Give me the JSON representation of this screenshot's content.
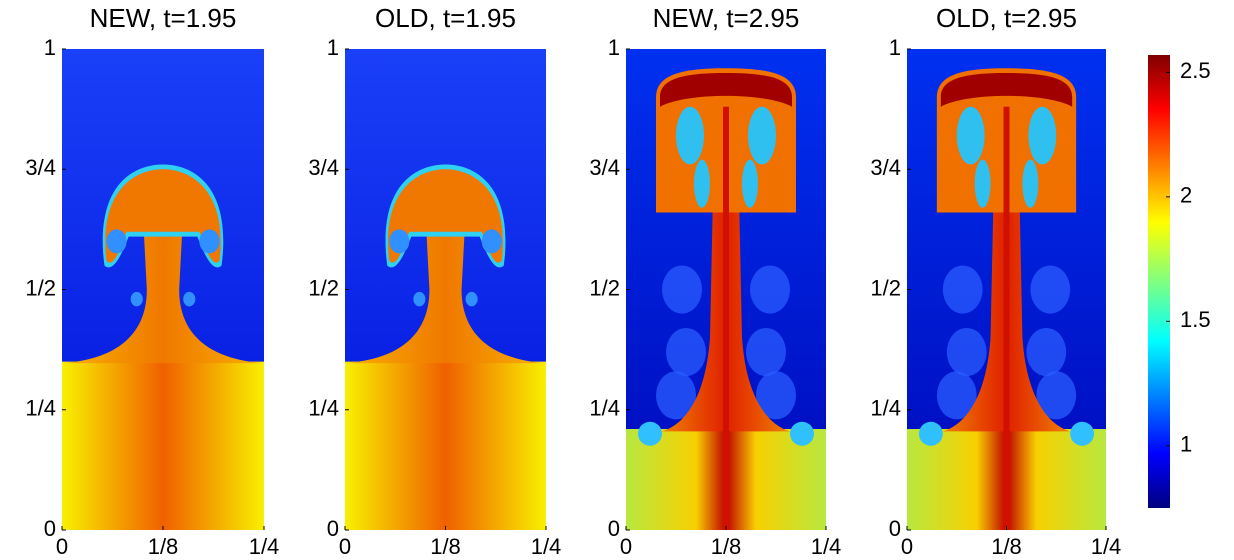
{
  "chart_data": [
    {
      "type": "heatmap",
      "title": "NEW, t=1.95",
      "xlim": [
        0,
        0.25
      ],
      "ylim": [
        0,
        1
      ],
      "xticks": [
        0,
        {
          "value": 0.125,
          "label": "1/8"
        },
        {
          "value": 0.25,
          "label": "1/4"
        }
      ],
      "yticks": [
        0,
        {
          "value": 0.25,
          "label": "1/4"
        },
        {
          "value": 0.5,
          "label": "1/2"
        },
        {
          "value": 0.75,
          "label": "3/4"
        },
        1
      ]
    },
    {
      "type": "heatmap",
      "title": "OLD, t=1.95",
      "xlim": [
        0,
        0.25
      ],
      "ylim": [
        0,
        1
      ],
      "xticks": [
        0,
        {
          "value": 0.125,
          "label": "1/8"
        },
        {
          "value": 0.25,
          "label": "1/4"
        }
      ],
      "yticks": [
        0,
        {
          "value": 0.25,
          "label": "1/4"
        },
        {
          "value": 0.5,
          "label": "1/2"
        },
        {
          "value": 0.75,
          "label": "3/4"
        },
        1
      ]
    },
    {
      "type": "heatmap",
      "title": "NEW, t=2.95",
      "xlim": [
        0,
        0.25
      ],
      "ylim": [
        0,
        1
      ],
      "xticks": [
        0,
        {
          "value": 0.125,
          "label": "1/8"
        },
        {
          "value": 0.25,
          "label": "1/4"
        }
      ],
      "yticks": [
        0,
        {
          "value": 0.25,
          "label": "1/4"
        },
        {
          "value": 0.5,
          "label": "1/2"
        },
        {
          "value": 0.75,
          "label": "3/4"
        },
        1
      ]
    },
    {
      "type": "heatmap",
      "title": "OLD, t=2.95",
      "xlim": [
        0,
        0.25
      ],
      "ylim": [
        0,
        1
      ],
      "xticks": [
        0,
        {
          "value": 0.125,
          "label": "1/8"
        },
        {
          "value": 0.25,
          "label": "1/4"
        }
      ],
      "yticks": [
        0,
        {
          "value": 0.25,
          "label": "1/4"
        },
        {
          "value": 0.5,
          "label": "1/2"
        },
        {
          "value": 0.75,
          "label": "3/4"
        },
        1
      ]
    },
    {
      "type": "colorbar",
      "ylim": [
        0.75,
        2.57
      ],
      "yticks": [
        1,
        1.5,
        2,
        2.5
      ]
    }
  ]
}
